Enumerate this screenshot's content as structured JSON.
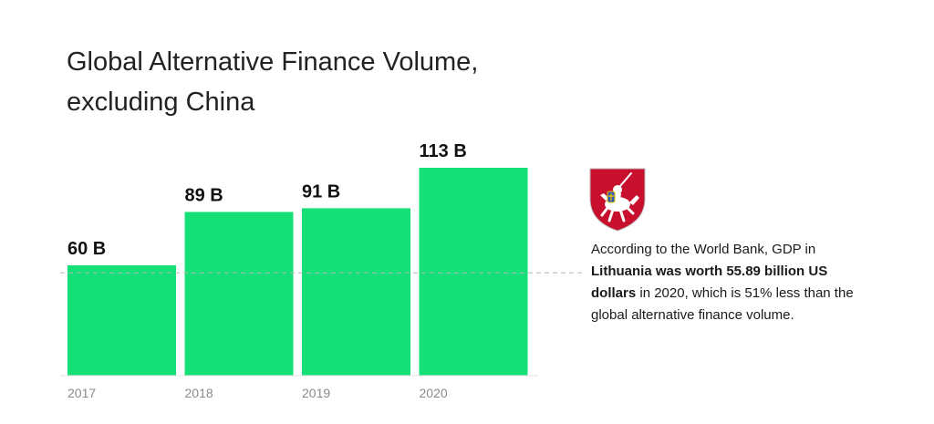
{
  "title": {
    "line1": "Global Alternative Finance Volume,",
    "line2": "excluding China"
  },
  "chart_data": {
    "type": "bar",
    "categories": [
      "2017",
      "2018",
      "2019",
      "2020"
    ],
    "values": [
      60,
      89,
      91,
      113
    ],
    "value_labels": [
      "60 B",
      "89 B",
      "91 B",
      "113 B"
    ],
    "unit": "B",
    "ylim": [
      0,
      113
    ],
    "grid": false,
    "bar_color": "#15e077",
    "reference_line": {
      "value": 55.89,
      "style": "dashed"
    }
  },
  "note": {
    "part1": "According to the World Bank, GDP in ",
    "bold": "Lithuania was worth 55.89 billion US dollars",
    "part2": " in 2020, which is 51% less than the global alternative finance volume."
  },
  "flag": {
    "icon": "lithuania-coat-of-arms-icon",
    "shield_color": "#c8102e"
  }
}
